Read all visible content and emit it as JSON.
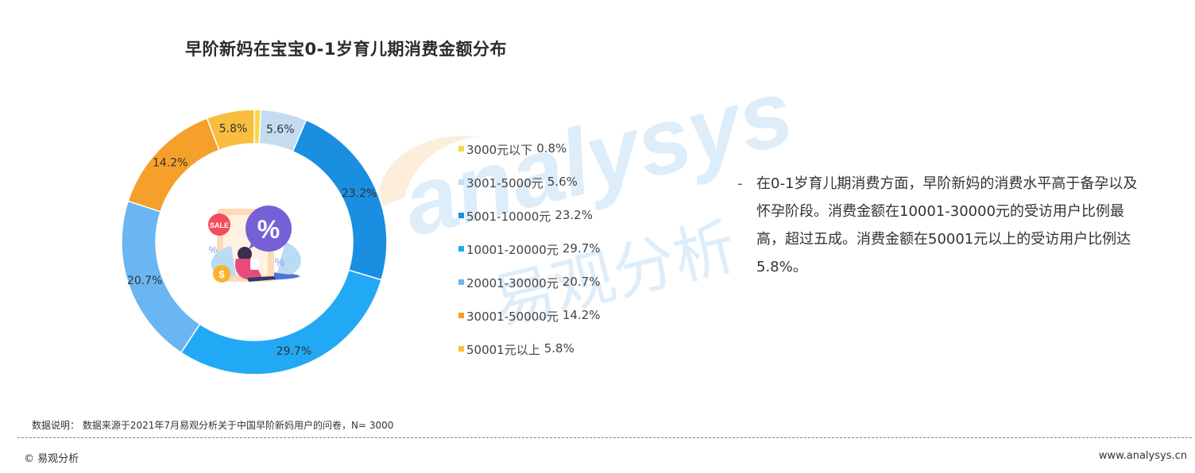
{
  "title": "早阶新妈在宝宝0-1岁育儿期消费金额分布",
  "watermark": {
    "en": "analysys",
    "cn": "易观分析"
  },
  "chart_data": {
    "type": "pie",
    "categories": [
      "3000元以下",
      "3001-5000元",
      "5001-10000元",
      "10001-20000元",
      "20001-30000元",
      "30001-50000元",
      "50001元以上"
    ],
    "values": [
      0.8,
      5.6,
      23.2,
      29.7,
      20.7,
      14.2,
      5.8
    ],
    "value_labels": [
      "",
      "5.6%",
      "23.2%",
      "29.7%",
      "20.7%",
      "14.2%",
      "5.8%"
    ],
    "legend_values": [
      "0.8%",
      "5.6%",
      "23.2%",
      "29.7%",
      "20.7%",
      "14.2%",
      "5.8%"
    ],
    "colors": [
      "#f8d648",
      "#c5dbf0",
      "#1a8ee0",
      "#22a9f5",
      "#69b6f3",
      "#f5a02b",
      "#f8be3f"
    ],
    "legend_placement": "right"
  },
  "center_icon": {
    "badge": "SALE",
    "symbol": "%",
    "coin": "$"
  },
  "description": {
    "dash": "-",
    "text": "在0-1岁育儿期消费方面，早阶新妈的消费水平高于备孕以及怀孕阶段。消费金额在10001-30000元的受访用户比例最高，超过五成。消费金额在50001元以上的受访用户比例达5.8%。"
  },
  "footnote": "数据说明： 数据来源于2021年7月易观分析关于中国早阶新妈用户的问卷，N= 3000",
  "footer": {
    "copyright": "© 易观分析",
    "website": "www.analysys.cn"
  }
}
